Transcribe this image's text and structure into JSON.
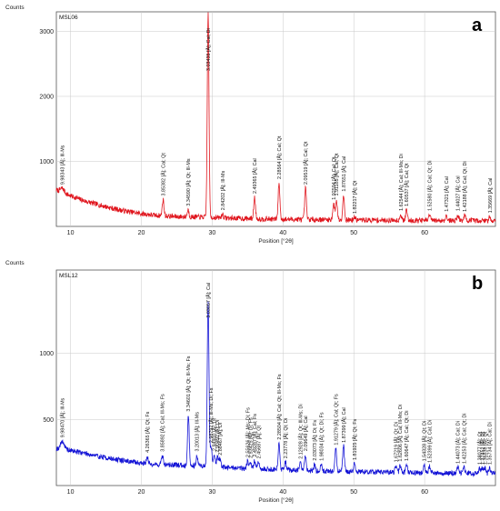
{
  "colors": {
    "panel_a": "#e0161e",
    "panel_b": "#1414d6",
    "frame": "#555555",
    "grid": "#c8c8c8"
  },
  "chart_data": [
    {
      "type": "line",
      "panel_letter": "a",
      "sample": "MSL06",
      "ylabel": "Counts",
      "xlabel": "Position [°2θ]",
      "xlim": [
        8,
        70
      ],
      "ylim": [
        0,
        3300
      ],
      "xticks": [
        10,
        20,
        30,
        40,
        50,
        60
      ],
      "yticks": [
        1000,
        2000,
        3000
      ],
      "grid": true,
      "baseline": [
        [
          8,
          560
        ],
        [
          9,
          520
        ],
        [
          10,
          470
        ],
        [
          12,
          390
        ],
        [
          14,
          330
        ],
        [
          16,
          275
        ],
        [
          18,
          230
        ],
        [
          20,
          195
        ],
        [
          22,
          170
        ],
        [
          25,
          150
        ],
        [
          28,
          145
        ],
        [
          32,
          130
        ],
        [
          36,
          118
        ],
        [
          40,
          110
        ],
        [
          45,
          105
        ],
        [
          50,
          100
        ],
        [
          55,
          95
        ],
        [
          60,
          92
        ],
        [
          65,
          90
        ],
        [
          70,
          88
        ]
      ],
      "peaks": [
        {
          "x": 8.84,
          "y": 60,
          "w": 0.25,
          "label": "9.98343 [Å]; Ill-Ms"
        },
        {
          "x": 23.07,
          "y": 250,
          "w": 0.12,
          "label": "3.85382 [Å]; Cal; Qt"
        },
        {
          "x": 26.6,
          "y": 110,
          "w": 0.12,
          "label": "3.34590 [Å]; Qt; Ill-Ms"
        },
        {
          "x": 29.43,
          "y": 3150,
          "w": 0.12,
          "label": "3.03435 [Å]; Cal; Di"
        },
        {
          "x": 31.46,
          "y": 60,
          "w": 0.12,
          "label": "2.84202 [Å]; Ill-Ms"
        },
        {
          "x": 35.99,
          "y": 330,
          "w": 0.12,
          "label": "2.49365 [Å]; Cal"
        },
        {
          "x": 39.44,
          "y": 560,
          "w": 0.12,
          "label": "2.28564 [Å]; Cal; Qt"
        },
        {
          "x": 43.18,
          "y": 480,
          "w": 0.12,
          "label": "2.09519 [Å]; Cal; Qt"
        },
        {
          "x": 47.15,
          "y": 250,
          "w": 0.12,
          "label": "1.92594 [Å]; Cal; Qt"
        },
        {
          "x": 47.55,
          "y": 310,
          "w": 0.12,
          "label": "1.91185 [Å]; Cal; Qt"
        },
        {
          "x": 48.55,
          "y": 380,
          "w": 0.12,
          "label": "1.87651 [Å]; Cal"
        },
        {
          "x": 50.13,
          "y": 40,
          "w": 0.12,
          "label": "1.82217 [Å]; Qt"
        },
        {
          "x": 56.62,
          "y": 90,
          "w": 0.12,
          "label": "1.62544 [Å]; Cal; Ill-Ms; Di"
        },
        {
          "x": 57.44,
          "y": 160,
          "w": 0.12,
          "label": "1.60537 [Å]; Cal; Qt"
        },
        {
          "x": 60.71,
          "y": 90,
          "w": 0.12,
          "label": "1.52580 [Å]; Cal; Qt; Di"
        },
        {
          "x": 63.08,
          "y": 80,
          "w": 0.12,
          "label": "1.47321 [Å]; Cal"
        },
        {
          "x": 64.7,
          "y": 90,
          "w": 0.12,
          "label": "1.44027 [Å]; Cal"
        },
        {
          "x": 65.65,
          "y": 80,
          "w": 0.12,
          "label": "1.42188 [Å]; Cal; Qt; Di"
        },
        {
          "x": 69.2,
          "y": 60,
          "w": 0.12,
          "label": "1.35669 [Å]; Cal"
        }
      ]
    },
    {
      "type": "line",
      "panel_letter": "b",
      "sample": "MSL12",
      "ylabel": "Counts",
      "xlabel": "Position [°2θ]",
      "xlim": [
        8,
        70
      ],
      "ylim": [
        0,
        1630
      ],
      "xticks": [
        10,
        20,
        30,
        40,
        50,
        60
      ],
      "yticks": [
        500,
        1000
      ],
      "grid": true,
      "baseline": [
        [
          8,
          280
        ],
        [
          9,
          275
        ],
        [
          10,
          265
        ],
        [
          12,
          245
        ],
        [
          14,
          220
        ],
        [
          16,
          200
        ],
        [
          18,
          185
        ],
        [
          20,
          170
        ],
        [
          22,
          160
        ],
        [
          25,
          155
        ],
        [
          28,
          150
        ],
        [
          30,
          145
        ],
        [
          33,
          135
        ],
        [
          36,
          128
        ],
        [
          40,
          118
        ],
        [
          45,
          110
        ],
        [
          50,
          105
        ],
        [
          55,
          100
        ],
        [
          60,
          96
        ],
        [
          65,
          93
        ],
        [
          70,
          90
        ]
      ],
      "peaks": [
        {
          "x": 8.85,
          "y": 60,
          "w": 0.25,
          "label": "9.98470 [Å]; Ill-Ms"
        },
        {
          "x": 20.82,
          "y": 55,
          "w": 0.12,
          "label": "4.26365 [Å]; Qt; Fs"
        },
        {
          "x": 22.97,
          "y": 70,
          "w": 0.12,
          "label": "3.85892 [Å]; Cal; Ill-Ms; Fs"
        },
        {
          "x": 26.64,
          "y": 380,
          "w": 0.12,
          "label": "3.34601 [Å]; Qt; Ill-Ms; Fs"
        },
        {
          "x": 27.85,
          "y": 80,
          "w": 0.12,
          "label": "3.20013 [Å]; Ill-Ms"
        },
        {
          "x": 29.43,
          "y": 1260,
          "w": 0.12,
          "label": "3.03057 [Å]; Cal"
        },
        {
          "x": 29.85,
          "y": 150,
          "w": 0.12,
          "label": "2.98792 [Å]; Ill-Ms; Di; Fs"
        },
        {
          "x": 30.3,
          "y": 90,
          "w": 0.12,
          "label": "2.94900 [Å]; Di"
        },
        {
          "x": 30.75,
          "y": 80,
          "w": 0.12,
          "label": "2.90492 [Å]; Di"
        },
        {
          "x": 31.1,
          "y": 60,
          "w": 0.12,
          "label": "2.88467 [Å]; Di"
        },
        {
          "x": 35.0,
          "y": 55,
          "w": 0.12,
          "label": "2.55626 [Å]; Ms; Di; Fs"
        },
        {
          "x": 35.4,
          "y": 50,
          "w": 0.12,
          "label": "2.53425 [Å]; Di; Fs"
        },
        {
          "x": 36.0,
          "y": 60,
          "w": 0.12,
          "label": "2.49287 [Å]; Cal; Fs"
        },
        {
          "x": 36.55,
          "y": 50,
          "w": 0.12,
          "label": "2.45687 [Å]; Qt"
        },
        {
          "x": 39.43,
          "y": 200,
          "w": 0.12,
          "label": "2.28504 [Å]; Cal; Qt; Ill-Ms; Fs"
        },
        {
          "x": 40.35,
          "y": 60,
          "w": 0.12,
          "label": "2.23778 [Å]; Qt; Di"
        },
        {
          "x": 42.45,
          "y": 60,
          "w": 0.12,
          "label": "2.12928 [Å]; Qt; Ill-Ms; Di"
        },
        {
          "x": 43.15,
          "y": 120,
          "w": 0.12,
          "label": "2.09649 [Å]; Cal"
        },
        {
          "x": 44.45,
          "y": 50,
          "w": 0.12,
          "label": "2.03073 [Å]; Di; Fs"
        },
        {
          "x": 45.4,
          "y": 50,
          "w": 0.12,
          "label": "1.98034 [Å]; Qt; Di; Fs"
        },
        {
          "x": 47.45,
          "y": 170,
          "w": 0.12,
          "label": "1.91279 [Å]; Cal; Qt; Fs"
        },
        {
          "x": 48.55,
          "y": 190,
          "w": 0.12,
          "label": "1.87399 [Å]; Cal"
        },
        {
          "x": 50.1,
          "y": 60,
          "w": 0.12,
          "label": "1.81925 [Å]; Qt; Fs"
        },
        {
          "x": 55.95,
          "y": 50,
          "w": 0.12,
          "label": "1.67219 [Å]; Qt; Di"
        },
        {
          "x": 56.55,
          "y": 55,
          "w": 0.12,
          "label": "1.62606 [Å]; Cal; Ill-Ms; Di"
        },
        {
          "x": 57.45,
          "y": 60,
          "w": 0.12,
          "label": "1.60647 [Å]; Cal; Qt; Di"
        },
        {
          "x": 59.95,
          "y": 60,
          "w": 0.12,
          "label": "1.54328 [Å]; Qt; Di"
        },
        {
          "x": 60.7,
          "y": 50,
          "w": 0.12,
          "label": "1.52399 [Å]; Cal; Di"
        },
        {
          "x": 64.7,
          "y": 45,
          "w": 0.12,
          "label": "1.44073 [Å]; Cal; Di"
        },
        {
          "x": 65.55,
          "y": 45,
          "w": 0.12,
          "label": "1.42253 [Å]; Cal; Qt; Di"
        },
        {
          "x": 67.75,
          "y": 40,
          "w": 0.12,
          "label": "1.38077 [Å]; Qt"
        },
        {
          "x": 68.15,
          "y": 40,
          "w": 0.12,
          "label": "1.37452 [Å]; Qt"
        },
        {
          "x": 68.55,
          "y": 40,
          "w": 0.12,
          "label": "1.36838 [Å]; Qt"
        },
        {
          "x": 69.15,
          "y": 40,
          "w": 0.12,
          "label": "1.35734 [Å]; Cal; Di"
        }
      ]
    }
  ]
}
